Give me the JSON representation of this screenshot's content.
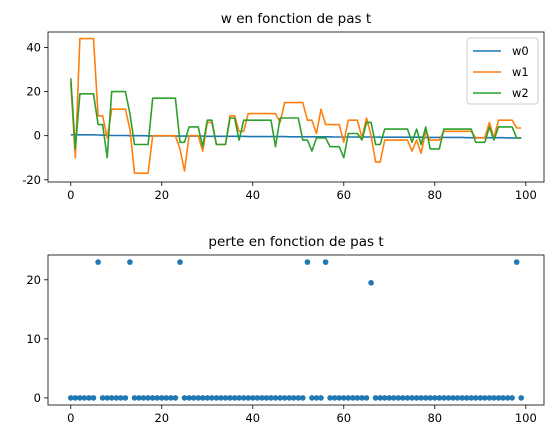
{
  "chart_data": [
    {
      "type": "line",
      "title": "w en fonction de pas t",
      "xlabel": "",
      "ylabel": "",
      "xlim": [
        -5,
        104
      ],
      "ylim": [
        -21,
        47
      ],
      "xticks": [
        0,
        20,
        40,
        60,
        80,
        100
      ],
      "yticks": [
        -20,
        0,
        20,
        40
      ],
      "grid": false,
      "legend_position": "top-right",
      "x": [
        0,
        1,
        2,
        3,
        4,
        5,
        6,
        7,
        8,
        9,
        10,
        11,
        12,
        13,
        14,
        15,
        16,
        17,
        18,
        19,
        20,
        21,
        22,
        23,
        24,
        25,
        26,
        27,
        28,
        29,
        30,
        31,
        32,
        33,
        34,
        35,
        36,
        37,
        38,
        39,
        40,
        41,
        42,
        43,
        44,
        45,
        46,
        47,
        48,
        49,
        50,
        51,
        52,
        53,
        54,
        55,
        56,
        57,
        58,
        59,
        60,
        61,
        62,
        63,
        64,
        65,
        66,
        67,
        68,
        69,
        70,
        71,
        72,
        73,
        74,
        75,
        76,
        77,
        78,
        79,
        80,
        81,
        82,
        83,
        84,
        85,
        86,
        87,
        88,
        89,
        90,
        91,
        92,
        93,
        94,
        95,
        96,
        97,
        98,
        99
      ],
      "series": [
        {
          "name": "w0",
          "color": "#1f77b4",
          "values": [
            0.4,
            0.4,
            0.4,
            0.4,
            0.4,
            0.4,
            0.3,
            0.2,
            0.2,
            0.1,
            0.1,
            0.1,
            0.1,
            0.0,
            0.0,
            0.0,
            0.0,
            -0.1,
            -0.1,
            -0.1,
            -0.1,
            -0.1,
            -0.1,
            -0.2,
            -0.2,
            -0.2,
            -0.2,
            -0.2,
            -0.2,
            -0.2,
            -0.3,
            -0.3,
            -0.3,
            -0.3,
            -0.3,
            -0.3,
            -0.3,
            -0.3,
            -0.3,
            -0.4,
            -0.4,
            -0.4,
            -0.4,
            -0.4,
            -0.4,
            -0.4,
            -0.4,
            -0.4,
            -0.5,
            -0.5,
            -0.5,
            -0.5,
            -0.5,
            -0.5,
            -0.5,
            -0.5,
            -0.5,
            -0.5,
            -0.6,
            -0.6,
            -0.6,
            -0.6,
            -0.6,
            -0.6,
            -0.6,
            -0.6,
            -0.6,
            -0.6,
            -0.7,
            -0.7,
            -0.7,
            -0.7,
            -0.7,
            -0.7,
            -0.7,
            -0.7,
            -0.7,
            -0.7,
            -0.8,
            -0.8,
            -0.8,
            -0.8,
            -0.8,
            -0.8,
            -0.8,
            -0.8,
            -0.8,
            -0.9,
            -0.9,
            -0.9,
            -0.9,
            -0.9,
            -0.9,
            -0.9,
            -0.9,
            -0.9,
            -1.0,
            -1.0,
            -1.0,
            -1.0
          ]
        },
        {
          "name": "w1",
          "color": "#ff7f0e",
          "values": [
            24.0,
            -10.0,
            44.0,
            44.0,
            44.0,
            44.0,
            9.0,
            9.0,
            -1.0,
            12.0,
            12.0,
            12.0,
            12.0,
            3.0,
            -17.0,
            -17.0,
            -17.0,
            -17.0,
            0.0,
            0.0,
            0.0,
            0.0,
            0.0,
            0.0,
            -6.0,
            -16.0,
            0.0,
            0.0,
            0.0,
            -7.0,
            6.0,
            6.0,
            -4.0,
            -4.0,
            -4.0,
            9.0,
            9.0,
            2.0,
            2.0,
            10.0,
            10.0,
            10.0,
            10.0,
            10.0,
            10.0,
            10.0,
            6.0,
            15.0,
            15.0,
            15.0,
            15.0,
            15.0,
            7.0,
            7.0,
            1.0,
            12.0,
            5.0,
            5.0,
            5.0,
            5.0,
            -3.0,
            7.0,
            7.0,
            7.0,
            -1.0,
            8.0,
            0.0,
            -12.0,
            -12.0,
            -2.0,
            -2.0,
            -2.0,
            -2.0,
            -2.0,
            -2.0,
            -7.0,
            -2.0,
            -8.0,
            2.0,
            -2.0,
            -2.0,
            -2.0,
            2.0,
            2.0,
            2.0,
            2.0,
            2.0,
            2.0,
            2.0,
            -1.0,
            -1.0,
            -1.0,
            6.0,
            -1.0,
            7.0,
            7.0,
            7.0,
            7.0,
            3.5,
            3.5
          ]
        },
        {
          "name": "w2",
          "color": "#2ca02c",
          "values": [
            26.0,
            -6.0,
            19.0,
            19.0,
            19.0,
            19.0,
            5.0,
            5.0,
            -10.0,
            20.0,
            20.0,
            20.0,
            20.0,
            10.0,
            -4.0,
            -4.0,
            -4.0,
            -4.0,
            17.0,
            17.0,
            17.0,
            17.0,
            17.0,
            17.0,
            -3.0,
            -3.0,
            4.0,
            4.0,
            4.0,
            -5.0,
            7.0,
            7.0,
            -4.0,
            -4.0,
            -4.0,
            8.0,
            8.0,
            -2.0,
            7.0,
            7.0,
            7.0,
            7.0,
            7.0,
            7.0,
            7.0,
            -5.0,
            8.0,
            8.0,
            8.0,
            8.0,
            8.0,
            -2.0,
            -2.0,
            -7.0,
            -1.0,
            -1.0,
            -1.0,
            -5.0,
            -5.0,
            -5.0,
            -10.0,
            1.0,
            1.0,
            1.0,
            -2.0,
            6.0,
            6.0,
            -4.0,
            -4.0,
            3.0,
            3.0,
            3.0,
            3.0,
            3.0,
            3.0,
            -3.0,
            3.0,
            -4.0,
            4.0,
            -6.0,
            -6.0,
            -6.0,
            3.0,
            3.0,
            3.0,
            3.0,
            3.0,
            3.0,
            3.0,
            -3.0,
            -3.0,
            -3.0,
            4.0,
            -2.0,
            4.0,
            4.0,
            4.0,
            4.0,
            -1.0,
            -1.0
          ]
        }
      ]
    },
    {
      "type": "scatter",
      "title": "perte en fonction de pas t",
      "xlabel": "",
      "ylabel": "",
      "xlim": [
        -5,
        104
      ],
      "ylim": [
        -1.2,
        24.2
      ],
      "xticks": [
        0,
        20,
        40,
        60,
        80,
        100
      ],
      "yticks": [
        0,
        10,
        20
      ],
      "grid": false,
      "series": [
        {
          "color": "#1f77b4",
          "x": [
            0,
            1,
            2,
            3,
            4,
            5,
            6,
            7,
            8,
            9,
            10,
            11,
            12,
            13,
            14,
            15,
            16,
            17,
            18,
            19,
            20,
            21,
            22,
            23,
            24,
            25,
            26,
            27,
            28,
            29,
            30,
            31,
            32,
            33,
            34,
            35,
            36,
            37,
            38,
            39,
            40,
            41,
            42,
            43,
            44,
            45,
            46,
            47,
            48,
            49,
            50,
            51,
            52,
            53,
            54,
            55,
            56,
            57,
            58,
            59,
            60,
            61,
            62,
            63,
            64,
            65,
            66,
            67,
            68,
            69,
            70,
            71,
            72,
            73,
            74,
            75,
            76,
            77,
            78,
            79,
            80,
            81,
            82,
            83,
            84,
            85,
            86,
            87,
            88,
            89,
            90,
            91,
            92,
            93,
            94,
            95,
            96,
            97,
            98,
            99
          ],
          "values": [
            0,
            0,
            0,
            0,
            0,
            0,
            23.0,
            0,
            0,
            0,
            0,
            0,
            0,
            23.0,
            0,
            0,
            0,
            0,
            0,
            0,
            0,
            0,
            0,
            0,
            23.0,
            0,
            0,
            0,
            0,
            0,
            0,
            0,
            0,
            0,
            0,
            0,
            0,
            0,
            0,
            0,
            0,
            0,
            0,
            0,
            0,
            0,
            0,
            0,
            0,
            0,
            0,
            0,
            23.0,
            0,
            0,
            0,
            23.0,
            0,
            0,
            0,
            0,
            0,
            0,
            0,
            0,
            0,
            19.5,
            0,
            0,
            0,
            0,
            0,
            0,
            0,
            0,
            0,
            0,
            0,
            0,
            0,
            0,
            0,
            0,
            0,
            0,
            0,
            0,
            0,
            0,
            0,
            0,
            0,
            0,
            0,
            0,
            0,
            0,
            0,
            23.0,
            0
          ]
        }
      ]
    }
  ]
}
